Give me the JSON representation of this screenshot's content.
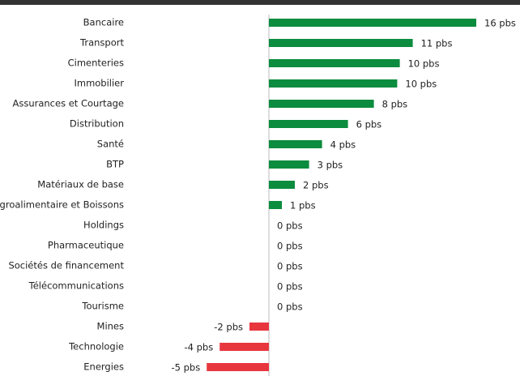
{
  "chart_data": {
    "type": "barh",
    "categories": [
      "Bancaire",
      "Transport",
      "Cimenteries",
      "Immobilier",
      "Assurances et Courtage",
      "Distribution",
      "Santé",
      "BTP",
      "Matériaux de base",
      "Agroalimentaire et Boissons",
      "Holdings",
      "Pharmaceutique",
      "Sociétés de financement",
      "Télécommunications",
      "Tourisme",
      "Mines",
      "Technologie",
      "Energies"
    ],
    "values": [
      16,
      11.1,
      10.1,
      9.9,
      8.1,
      6.1,
      4.1,
      3.1,
      2,
      1,
      0,
      0,
      0,
      0,
      0,
      -1.5,
      -3.8,
      -4.8
    ],
    "value_labels": [
      "16 pbs",
      "11 pbs",
      "10 pbs",
      "10 pbs",
      "8 pbs",
      "6 pbs",
      "4 pbs",
      "3 pbs",
      "2 pbs",
      "1 pbs",
      "0 pbs",
      "0 pbs",
      "0 pbs",
      "0 pbs",
      "0 pbs",
      "-2 pbs",
      "-4 pbs",
      "-5 pbs"
    ],
    "positive_color": "#0b8c3e",
    "negative_color": "#e8363f",
    "xlim": [
      -5,
      17
    ]
  }
}
